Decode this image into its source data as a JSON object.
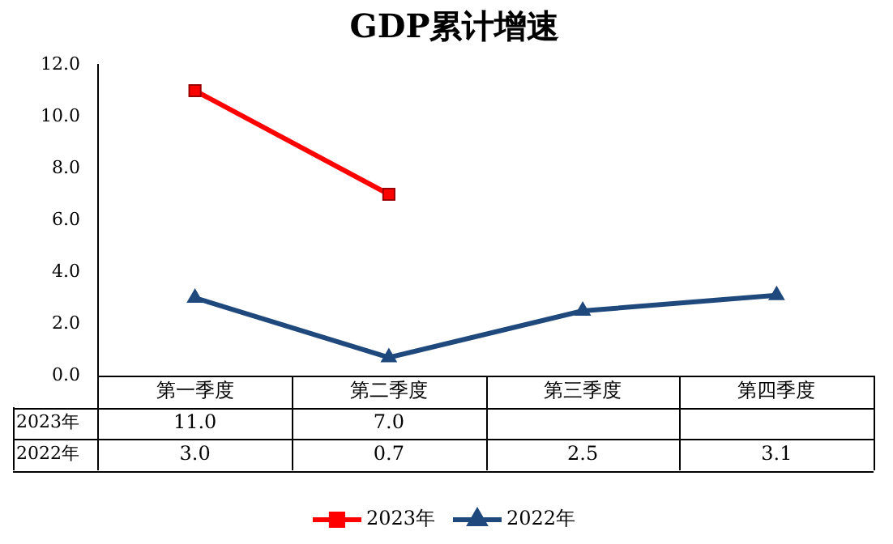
{
  "chart_data": {
    "type": "line",
    "title": "GDP累计增速",
    "categories": [
      "第一季度",
      "第二季度",
      "第三季度",
      "第四季度"
    ],
    "series": [
      {
        "name": "2023年",
        "color": "#ff0000",
        "marker": "square",
        "values": [
          11.0,
          7.0,
          null,
          null
        ],
        "value_labels": [
          "11.0",
          "7.0",
          null,
          null
        ]
      },
      {
        "name": "2022年",
        "color": "#1f497d",
        "marker": "triangle",
        "values": [
          3.0,
          0.7,
          2.5,
          3.1
        ],
        "value_labels": [
          "3.0",
          "0.7",
          "2.5",
          "3.1"
        ]
      }
    ],
    "ylim": [
      0,
      12
    ],
    "yticks": [
      {
        "value": 0,
        "label": "0.0"
      },
      {
        "value": 2,
        "label": "2.0"
      },
      {
        "value": 4,
        "label": "4.0"
      },
      {
        "value": 6,
        "label": "6.0"
      },
      {
        "value": 8,
        "label": "8.0"
      },
      {
        "value": 10,
        "label": "10.0"
      },
      {
        "value": 12,
        "label": "12.0"
      }
    ],
    "legend": "bottom"
  }
}
